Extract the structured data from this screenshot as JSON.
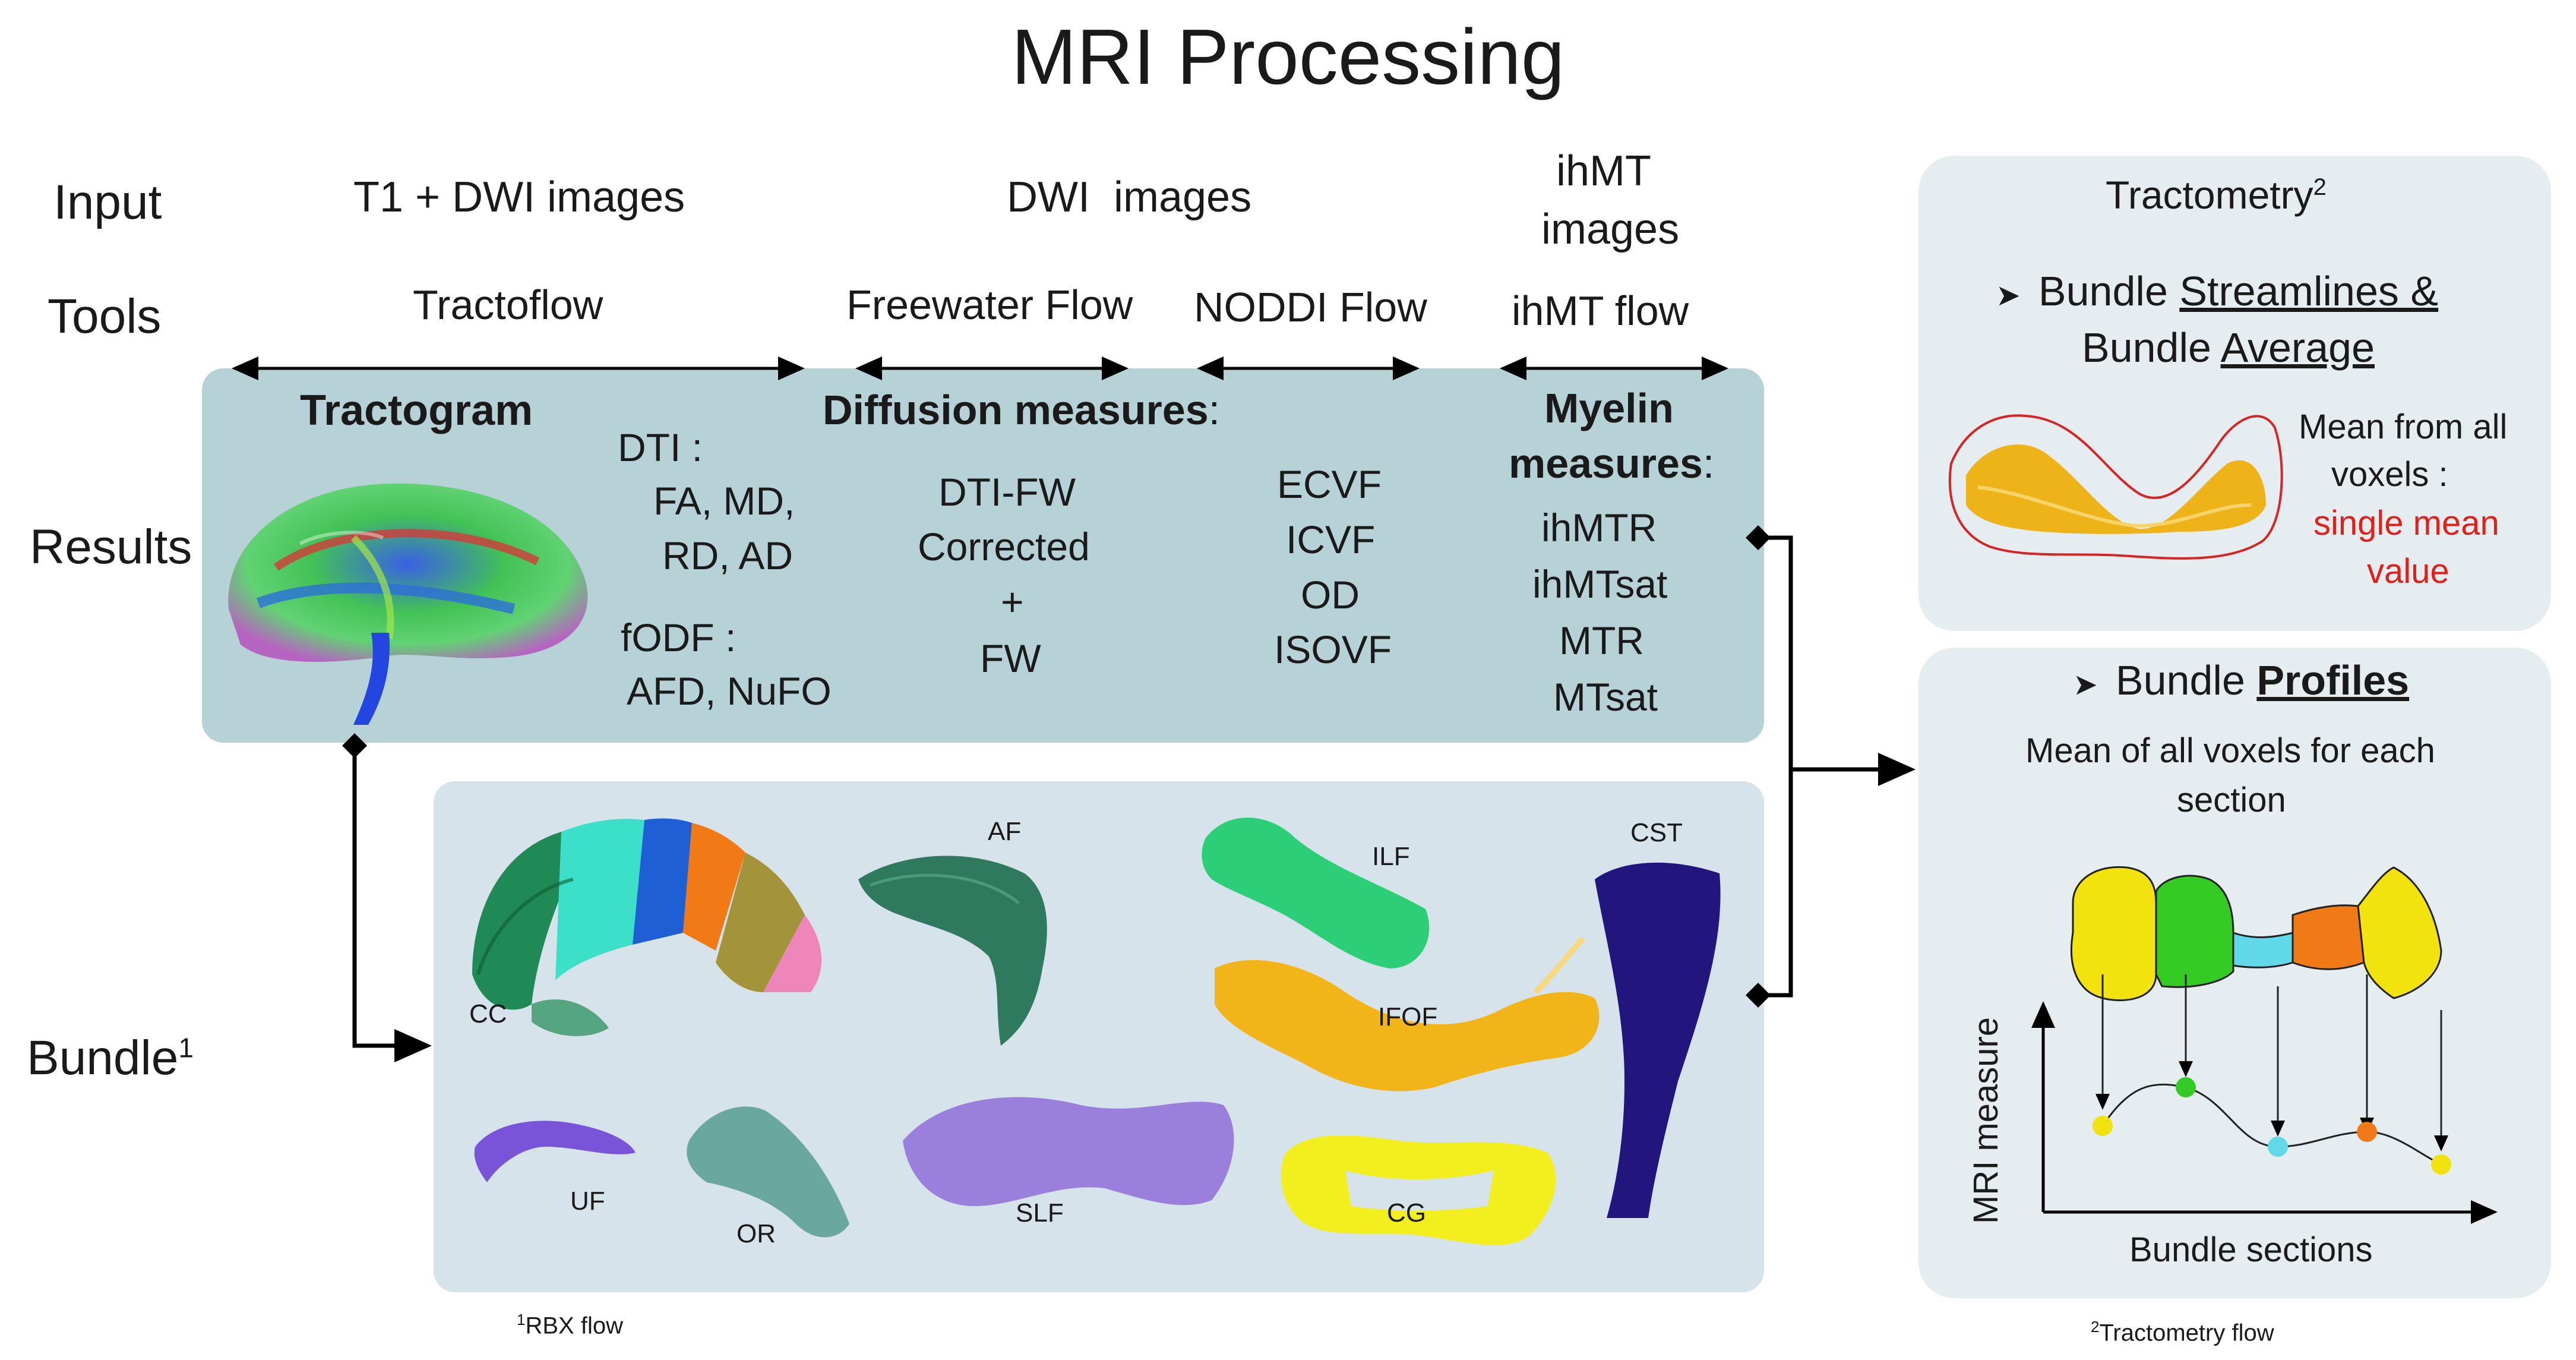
{
  "title": "MRI Processing",
  "rows": {
    "input": "Input",
    "tools": "Tools",
    "results": "Results",
    "bundle_base": "Bundle",
    "bundle_sup": "1"
  },
  "inputs": {
    "t1_dwi": "T1 + DWI images",
    "dwi": "DWI  images",
    "ihmt_line1": "ihMT",
    "ihmt_line2": "images"
  },
  "tools": {
    "tractoflow": "Tractoflow",
    "freewater": "Freewater Flow",
    "noddi": "NODDI Flow",
    "ihmt": "ihMT flow"
  },
  "results": {
    "tractogram": "Tractogram",
    "dti_head": "DTI :",
    "dti_l1": "FA, MD,",
    "dti_l2": "RD, AD",
    "fodf_head": "fODF :",
    "fodf_l1": "AFD, NuFO",
    "diffusion_head": "Diffusion measures",
    "diffusion_colon": ":",
    "fw_l1": "DTI-FW",
    "fw_l2": "Corrected",
    "fw_l3": "+",
    "fw_l4": "FW",
    "noddi_l1": "ECVF",
    "noddi_l2": "ICVF",
    "noddi_l3": "OD",
    "noddi_l4": "ISOVF",
    "myelin_l1": "Myelin",
    "myelin_l2": "measures",
    "myelin_colon": ":",
    "ihmt_l1": "ihMTR",
    "ihmt_l2": "ihMTsat",
    "ihmt_l3": "MTR",
    "ihmt_l4": "MTsat"
  },
  "bundles": {
    "cc": "CC",
    "af": "AF",
    "ilf": "ILF",
    "cst": "CST",
    "ifof": "IFOF",
    "uf": "UF",
    "or": "OR",
    "slf": "SLF",
    "cg": "CG"
  },
  "footnotes": {
    "rbx_sup": "1",
    "rbx": "RBX flow",
    "tract_sup": "2",
    "tract": "Tractometry flow"
  },
  "tractometry": {
    "title": "Tractometry",
    "title_sup": "2",
    "arrow_glyph": "➤",
    "b1_pre": "Bundle ",
    "b1_u": "Streamlines &",
    "b2_pre": "Bundle ",
    "b2_u": "Average",
    "mean_l1": "Mean from all",
    "mean_l2": "voxels :",
    "mean_l3": "single mean",
    "mean_l4": "value",
    "profiles_pre": "Bundle ",
    "profiles_u": "Profiles",
    "profiles_desc_l1": "Mean of all voxels for each",
    "profiles_desc_l2": "section",
    "y_label": "MRI measure",
    "x_label": "Bundle sections"
  },
  "colors": {
    "results_panel": "#b7d2d6",
    "bundle_panel": "#d6e3ea",
    "tract_panel": "#e6edf1",
    "red_text": "#e0201b",
    "profile_points": [
      "#f2e20e",
      "#34cc24",
      "#62d9e8",
      "#ef7a16",
      "#f2e20e"
    ],
    "cc": [
      "#1f8a55",
      "#3ce0c9",
      "#1e5fd6",
      "#f17a17",
      "#a3933a",
      "#ee86b9"
    ],
    "af": "#2f7a5f",
    "ilf": "#2ccf78",
    "cst": "#22157e",
    "ifof": "#f1b51a",
    "uf": "#7a54d8",
    "or": "#6aa79e",
    "slf": "#9b7fdc",
    "cg": "#f3ef1e",
    "avg_bundle": "#efb31a"
  }
}
